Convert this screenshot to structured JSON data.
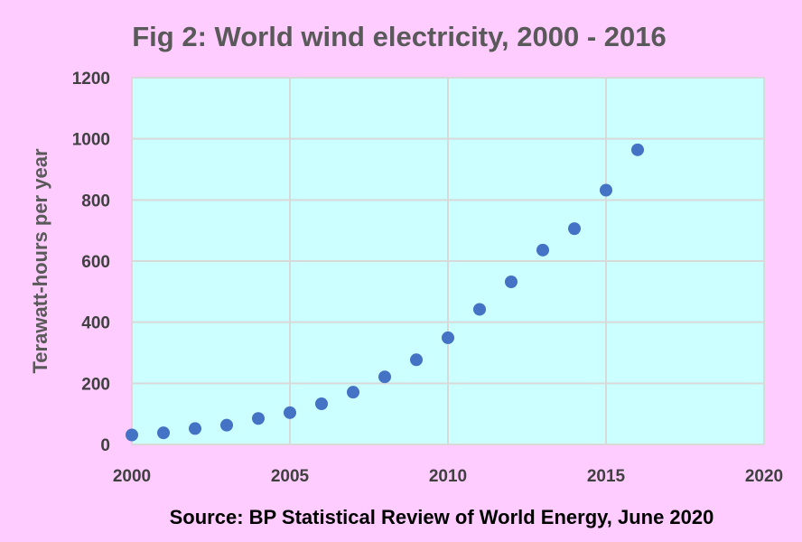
{
  "chart_data": {
    "type": "scatter",
    "title": "Fig 2: World wind electricity, 2000 - 2016",
    "xlabel": "",
    "ylabel": "Terawatt-hours per year",
    "source": "Source: BP Statistical Review of World Energy, June 2020",
    "xlim": [
      2000,
      2020
    ],
    "ylim": [
      0,
      1200
    ],
    "xticks": [
      2000,
      2005,
      2010,
      2015,
      2020
    ],
    "yticks": [
      0,
      200,
      400,
      600,
      800,
      1000,
      1200
    ],
    "grid": true,
    "legend": "none",
    "colors": {
      "page_background": "#ffccff",
      "plot_background": "#ccffff",
      "marker": "#4472c4",
      "gridline": "#d9d9d9"
    },
    "series": [
      {
        "x": [
          2000,
          2001,
          2002,
          2003,
          2004,
          2005,
          2006,
          2007,
          2008,
          2009,
          2010,
          2011,
          2012,
          2013,
          2014,
          2015,
          2016
        ],
        "y": [
          31,
          38,
          52,
          63,
          85,
          104,
          133,
          171,
          221,
          277,
          349,
          442,
          532,
          636,
          706,
          832,
          964
        ]
      }
    ]
  }
}
